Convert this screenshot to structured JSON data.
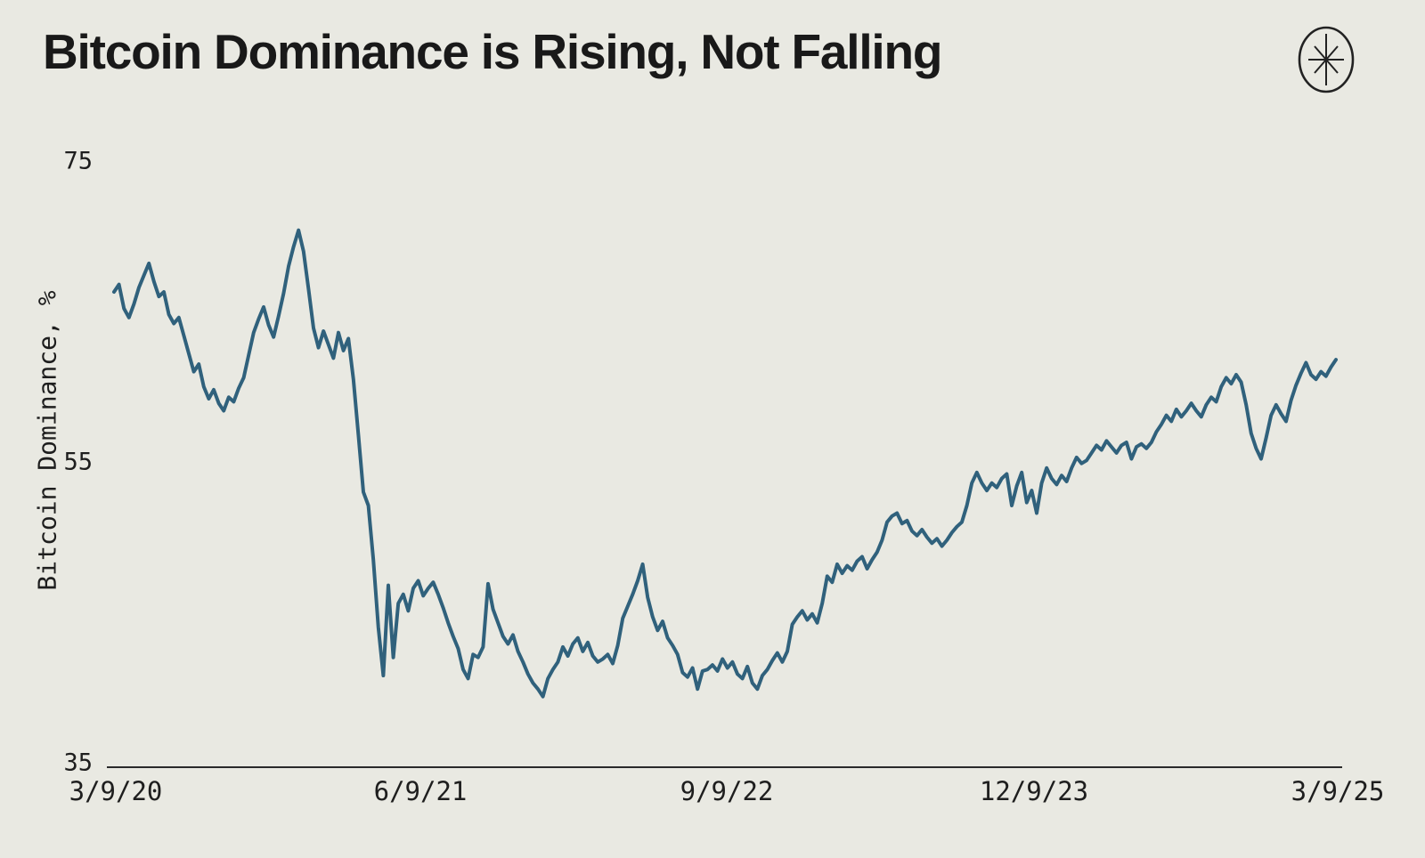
{
  "header": {
    "title": "Bitcoin Dominance is Rising, Not Falling",
    "logo": "ecoinometrics-star-logo"
  },
  "colors": {
    "background": "#e9e9e2",
    "line": "#30617c",
    "text": "#191919",
    "axis": "#2a2a2a"
  },
  "chart_data": {
    "type": "line",
    "title": "Bitcoin Dominance is Rising, Not Falling",
    "xlabel": "",
    "ylabel": "Bitcoin Dominance, %",
    "ylim": [
      35,
      75
    ],
    "y_tick_labels": [
      "75",
      "55",
      "35"
    ],
    "x_tick_labels": [
      "3/9/20",
      "6/9/21",
      "9/9/22",
      "12/9/23",
      "3/9/25"
    ],
    "x_range": [
      "3/9/20",
      "3/9/25"
    ],
    "grid": false,
    "legend": false,
    "line_color": "#30617c",
    "series_name": "Bitcoin Dominance, %",
    "values": [
      66.3,
      66.8,
      65.2,
      64.6,
      65.5,
      66.6,
      67.4,
      68.2,
      67.0,
      66.0,
      66.3,
      64.8,
      64.2,
      64.6,
      63.4,
      62.2,
      61.0,
      61.5,
      60.0,
      59.2,
      59.8,
      58.9,
      58.4,
      59.3,
      59.0,
      59.9,
      60.6,
      62.1,
      63.6,
      64.5,
      65.3,
      64.1,
      63.3,
      64.7,
      66.2,
      68.0,
      69.3,
      70.4,
      69.0,
      66.5,
      63.9,
      62.6,
      63.7,
      62.8,
      61.9,
      63.6,
      62.4,
      63.2,
      60.5,
      56.8,
      53.0,
      52.1,
      48.5,
      44.0,
      40.8,
      46.8,
      42.0,
      45.6,
      46.2,
      45.1,
      46.6,
      47.1,
      46.1,
      46.6,
      47.0,
      46.2,
      45.3,
      44.3,
      43.4,
      42.6,
      41.2,
      40.6,
      42.2,
      42.0,
      42.7,
      46.9,
      45.2,
      44.3,
      43.4,
      42.9,
      43.5,
      42.4,
      41.7,
      40.9,
      40.3,
      39.9,
      39.4,
      40.6,
      41.2,
      41.7,
      42.7,
      42.1,
      42.9,
      43.3,
      42.4,
      43.0,
      42.1,
      41.7,
      41.9,
      42.2,
      41.6,
      42.8,
      44.6,
      45.4,
      46.2,
      47.1,
      48.2,
      46.0,
      44.7,
      43.8,
      44.4,
      43.3,
      42.8,
      42.2,
      41.0,
      40.7,
      41.3,
      39.9,
      41.1,
      41.2,
      41.5,
      41.1,
      41.9,
      41.3,
      41.7,
      40.9,
      40.6,
      41.4,
      40.3,
      39.9,
      40.8,
      41.2,
      41.8,
      42.3,
      41.7,
      42.4,
      44.2,
      44.7,
      45.1,
      44.5,
      44.9,
      44.3,
      45.6,
      47.4,
      47.0,
      48.2,
      47.6,
      48.1,
      47.8,
      48.4,
      48.7,
      47.9,
      48.5,
      49.0,
      49.8,
      51.0,
      51.4,
      51.6,
      50.9,
      51.1,
      50.4,
      50.1,
      50.5,
      50.0,
      49.6,
      49.9,
      49.4,
      49.8,
      50.3,
      50.7,
      51.0,
      52.1,
      53.6,
      54.3,
      53.6,
      53.1,
      53.6,
      53.3,
      53.9,
      54.2,
      52.1,
      53.4,
      54.3,
      52.3,
      53.1,
      51.6,
      53.6,
      54.6,
      53.9,
      53.5,
      54.1,
      53.7,
      54.6,
      55.3,
      54.9,
      55.1,
      55.6,
      56.1,
      55.8,
      56.4,
      56.0,
      55.6,
      56.1,
      56.3,
      55.2,
      56.0,
      56.2,
      55.9,
      56.3,
      57.0,
      57.5,
      58.1,
      57.7,
      58.5,
      58.0,
      58.4,
      58.9,
      58.4,
      58.0,
      58.8,
      59.3,
      59.0,
      60.0,
      60.6,
      60.2,
      60.8,
      60.3,
      58.8,
      56.9,
      55.9,
      55.2,
      56.6,
      58.1,
      58.8,
      58.2,
      57.7,
      59.1,
      60.1,
      60.9,
      61.6,
      60.8,
      60.5,
      61.0,
      60.7,
      61.3,
      61.8
    ]
  }
}
